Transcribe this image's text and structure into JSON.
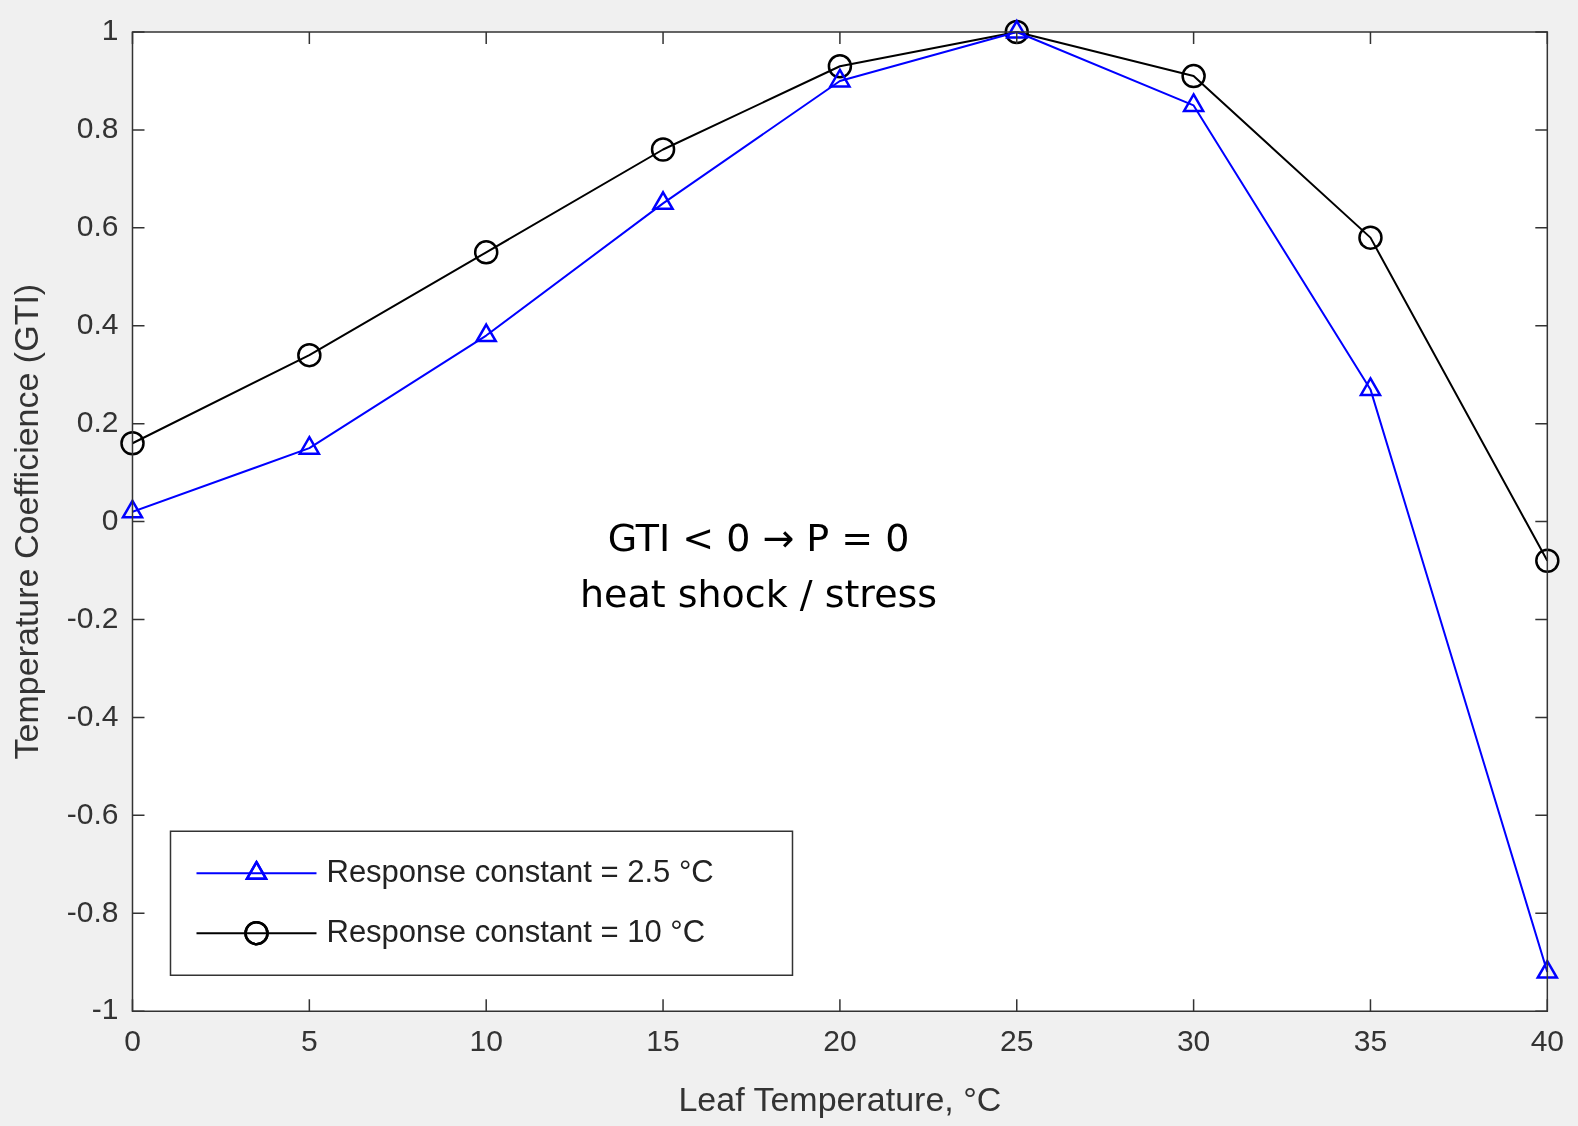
{
  "chart_data": {
    "type": "line",
    "xlabel": "Leaf Temperature, °C",
    "ylabel": "Temperature Coefficience (GTI)",
    "x": [
      0,
      5,
      10,
      15,
      20,
      25,
      30,
      35,
      40
    ],
    "series": [
      {
        "name": "Response constant = 2.5 °C",
        "color": "#0000ff",
        "marker": "triangle",
        "values": [
          0.02,
          0.15,
          0.38,
          0.65,
          0.9,
          1.0,
          0.85,
          0.27,
          -0.92
        ]
      },
      {
        "name": "Response constant = 10 °C",
        "color": "#000000",
        "marker": "circle",
        "values": [
          0.16,
          0.34,
          0.55,
          0.76,
          0.93,
          1.0,
          0.91,
          0.58,
          -0.08
        ]
      }
    ],
    "xlim": [
      0,
      40
    ],
    "xticks": [
      0,
      5,
      10,
      15,
      20,
      25,
      30,
      35,
      40
    ],
    "ylim": [
      -1,
      1
    ],
    "yticks": [
      -1,
      -0.8,
      -0.6,
      -0.4,
      -0.2,
      0,
      0.2,
      0.4,
      0.6,
      0.8,
      1
    ],
    "grid": false,
    "legend": "bottom left",
    "line_style": "solid",
    "annotations": [
      "GTI < 0 → P = 0",
      "heat shock / stress"
    ]
  }
}
